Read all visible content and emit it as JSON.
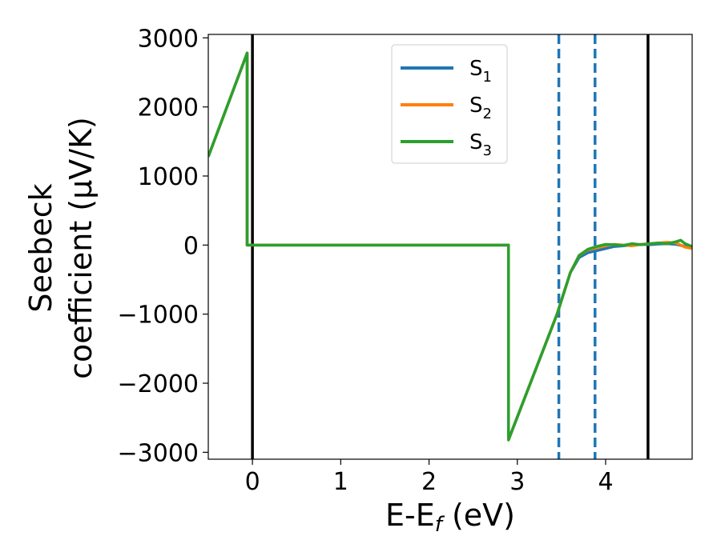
{
  "chart_data": {
    "type": "line",
    "xlabel": "E-E_f (eV)",
    "ylabel_line1": "Seebeck",
    "ylabel_line2": "coefficient  (μV/K)",
    "xlim": [
      -0.5,
      4.98
    ],
    "ylim": [
      -3100,
      3050
    ],
    "x_ticks": [
      0,
      1,
      2,
      3,
      4
    ],
    "y_ticks": [
      -3000,
      -2000,
      -1000,
      0,
      1000,
      2000,
      3000
    ],
    "x_tick_labels": [
      "0",
      "1",
      "2",
      "3",
      "4"
    ],
    "y_tick_labels": [
      "−3000",
      "−2000",
      "−1000",
      "0",
      "1000",
      "2000",
      "3000"
    ],
    "grid": false,
    "legend_position": "top-center",
    "series": [
      {
        "name": "S1",
        "label_base": "S",
        "label_sub": "1",
        "color": "#1f77b4",
        "points": [
          [
            -0.5,
            1280
          ],
          [
            -0.06,
            2780
          ],
          [
            -0.06,
            0
          ],
          [
            2.9,
            0
          ],
          [
            2.9,
            -2820
          ],
          [
            3.45,
            -1000
          ],
          [
            3.6,
            -400
          ],
          [
            3.7,
            -180
          ],
          [
            3.8,
            -110
          ],
          [
            3.9,
            -80
          ],
          [
            4.0,
            -50
          ],
          [
            4.1,
            -20
          ],
          [
            4.2,
            -10
          ],
          [
            4.3,
            0
          ],
          [
            4.4,
            10
          ],
          [
            4.5,
            5
          ],
          [
            4.6,
            15
          ],
          [
            4.7,
            20
          ],
          [
            4.8,
            10
          ],
          [
            4.9,
            -20
          ],
          [
            4.98,
            -30
          ]
        ]
      },
      {
        "name": "S2",
        "label_base": "S",
        "label_sub": "2",
        "color": "#ff7f0e",
        "points": [
          [
            -0.5,
            1280
          ],
          [
            -0.06,
            2780
          ],
          [
            -0.06,
            0
          ],
          [
            2.9,
            0
          ],
          [
            2.9,
            -2820
          ],
          [
            3.45,
            -1000
          ],
          [
            3.6,
            -400
          ],
          [
            3.7,
            -150
          ],
          [
            3.8,
            -70
          ],
          [
            3.9,
            -40
          ],
          [
            4.0,
            -10
          ],
          [
            4.1,
            10
          ],
          [
            4.2,
            0
          ],
          [
            4.3,
            -10
          ],
          [
            4.4,
            10
          ],
          [
            4.5,
            20
          ],
          [
            4.6,
            30
          ],
          [
            4.7,
            40
          ],
          [
            4.8,
            30
          ],
          [
            4.9,
            -30
          ],
          [
            4.98,
            -50
          ]
        ]
      },
      {
        "name": "S3",
        "label_base": "S",
        "label_sub": "3",
        "color": "#2ca02c",
        "points": [
          [
            -0.5,
            1280
          ],
          [
            -0.06,
            2780
          ],
          [
            -0.06,
            0
          ],
          [
            2.9,
            0
          ],
          [
            2.9,
            -2820
          ],
          [
            3.45,
            -1000
          ],
          [
            3.6,
            -400
          ],
          [
            3.7,
            -150
          ],
          [
            3.8,
            -60
          ],
          [
            3.9,
            -20
          ],
          [
            4.0,
            10
          ],
          [
            4.1,
            5
          ],
          [
            4.2,
            -5
          ],
          [
            4.3,
            20
          ],
          [
            4.4,
            5
          ],
          [
            4.5,
            20
          ],
          [
            4.6,
            30
          ],
          [
            4.7,
            20
          ],
          [
            4.8,
            50
          ],
          [
            4.85,
            70
          ],
          [
            4.9,
            20
          ],
          [
            4.98,
            -20
          ]
        ]
      }
    ],
    "vertical_lines": [
      {
        "x": 0.0,
        "style": "solid",
        "color": "#000000"
      },
      {
        "x": 4.48,
        "style": "solid",
        "color": "#000000"
      },
      {
        "x": 3.47,
        "style": "dashed",
        "color": "#1f77b4"
      },
      {
        "x": 3.88,
        "style": "dashed",
        "color": "#1f77b4"
      }
    ]
  }
}
